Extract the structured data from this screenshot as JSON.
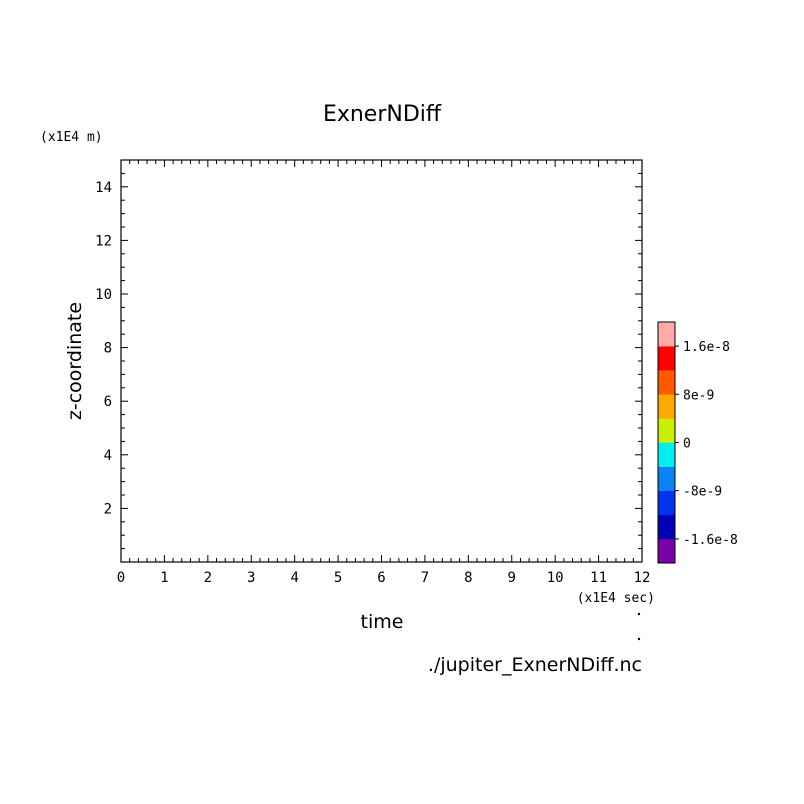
{
  "chart_data": {
    "type": "heatmap",
    "title": "ExnerNDiff",
    "xlabel": "time",
    "ylabel": "z-coordinate",
    "x_unit": "(x1E4 sec)",
    "y_unit": "(x1E4 m)",
    "xlim": [
      0,
      12
    ],
    "ylim": [
      0,
      15
    ],
    "x_major_ticks": [
      0,
      1,
      2,
      3,
      4,
      5,
      6,
      7,
      8,
      9,
      10,
      11,
      12
    ],
    "y_major_ticks": [
      2,
      4,
      6,
      8,
      10,
      12,
      14
    ],
    "x_minor_step": 0.2,
    "y_minor_step": 0.5,
    "grid": false,
    "plot_area": "empty",
    "colorbar": {
      "position": "right",
      "colors": [
        "#7B00A8",
        "#0000B4",
        "#0033EE",
        "#0A84F5",
        "#00F0F0",
        "#C8F000",
        "#FFA800",
        "#FF5A00",
        "#FF0000",
        "#FFAAAA"
      ],
      "tick_labels": [
        "-1.6e-8",
        "-8e-9",
        "0",
        "8e-9",
        "1.6e-8"
      ]
    },
    "source": "./jupiter_ExnerNDiff.nc"
  }
}
